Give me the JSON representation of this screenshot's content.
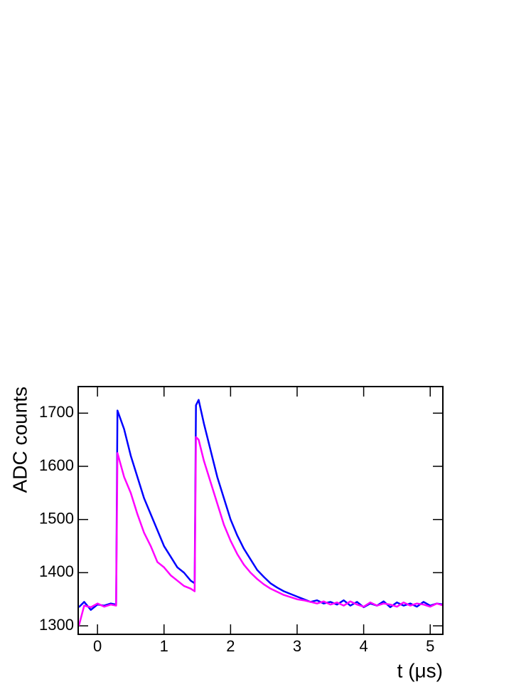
{
  "chart_data": {
    "type": "line",
    "x_label": "t (μs)",
    "y_label": "ADC counts",
    "x": [
      -0.28,
      -0.2,
      -0.1,
      0,
      0.1,
      0.2,
      0.28,
      0.3,
      0.4,
      0.5,
      0.6,
      0.7,
      0.8,
      0.9,
      1.0,
      1.1,
      1.2,
      1.3,
      1.4,
      1.46,
      1.48,
      1.52,
      1.6,
      1.7,
      1.8,
      1.9,
      2.0,
      2.1,
      2.2,
      2.3,
      2.4,
      2.5,
      2.6,
      2.7,
      2.8,
      2.9,
      3.0,
      3.1,
      3.2,
      3.3,
      3.4,
      3.5,
      3.6,
      3.7,
      3.8,
      3.9,
      4.0,
      4.1,
      4.2,
      4.3,
      4.4,
      4.5,
      4.6,
      4.7,
      4.8,
      4.9,
      5.0,
      5.1,
      5.2
    ],
    "series": [
      {
        "color": "#0000ff",
        "values": [
          1335,
          1345,
          1330,
          1340,
          1338,
          1342,
          1340,
          1705,
          1670,
          1620,
          1580,
          1540,
          1510,
          1480,
          1450,
          1430,
          1410,
          1400,
          1385,
          1380,
          1715,
          1725,
          1680,
          1630,
          1580,
          1540,
          1500,
          1470,
          1445,
          1425,
          1405,
          1392,
          1380,
          1372,
          1365,
          1360,
          1355,
          1350,
          1345,
          1348,
          1342,
          1345,
          1340,
          1348,
          1338,
          1345,
          1335,
          1342,
          1338,
          1346,
          1335,
          1344,
          1338,
          1342,
          1336,
          1345,
          1338,
          1342,
          1340
        ]
      },
      {
        "color": "#ff00ff",
        "values": [
          1300,
          1338,
          1335,
          1342,
          1336,
          1340,
          1338,
          1625,
          1580,
          1550,
          1510,
          1475,
          1450,
          1420,
          1410,
          1395,
          1385,
          1375,
          1370,
          1365,
          1655,
          1650,
          1610,
          1570,
          1530,
          1490,
          1460,
          1435,
          1415,
          1400,
          1388,
          1378,
          1370,
          1364,
          1358,
          1354,
          1350,
          1348,
          1345,
          1342,
          1346,
          1340,
          1344,
          1338,
          1346,
          1340,
          1336,
          1344,
          1338,
          1342,
          1340,
          1336,
          1344,
          1338,
          1342,
          1340,
          1336,
          1342,
          1338
        ]
      }
    ],
    "xlim": [
      -0.29,
      5.19
    ],
    "ylim": [
      1284,
      1750
    ],
    "xticks": [
      0,
      1,
      2,
      3,
      4,
      5
    ],
    "yticks": [
      1300,
      1400,
      1500,
      1600,
      1700
    ]
  }
}
